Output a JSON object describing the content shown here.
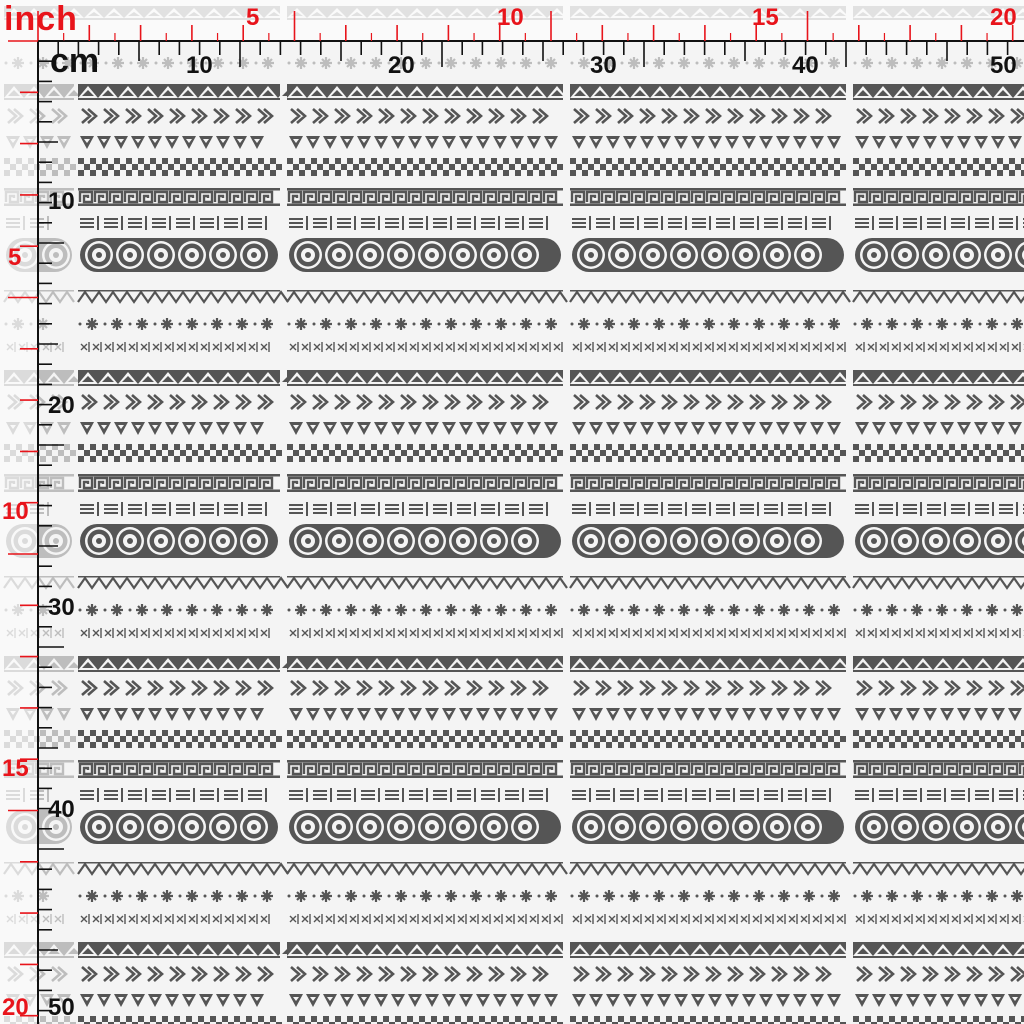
{
  "rulers": {
    "inch_unit": "inch",
    "cm_unit": "cm",
    "inch_color": "#e8141b",
    "cm_color": "#111111",
    "top_inch_labels": [
      "5",
      "10",
      "15",
      "20"
    ],
    "top_cm_labels": [
      "10",
      "20",
      "30",
      "40",
      "50"
    ],
    "left_inch_labels": [
      "5",
      "10",
      "15",
      "20"
    ],
    "left_cm_labels": [
      "10",
      "20",
      "30",
      "40",
      "50"
    ]
  },
  "fabric": {
    "background_color": "#f4f4f4",
    "motif_color": "#555555",
    "faded_motif_color": "#bdbdbd",
    "pattern": "horizontal tribal stripes: triangles, arrows, triangle row, checkers, greek key, dashes, circles, zigzag, stars, crosses"
  }
}
